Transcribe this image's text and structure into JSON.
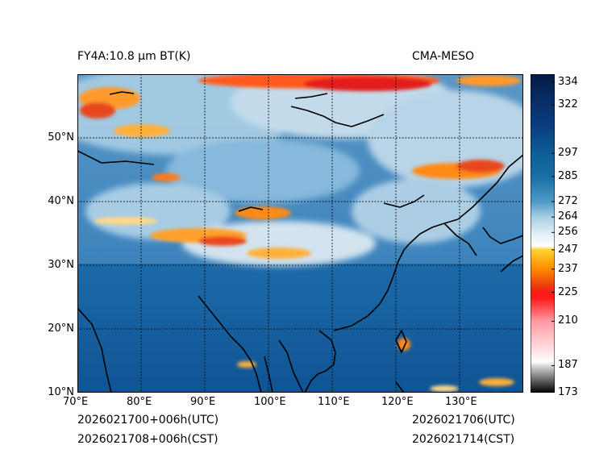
{
  "header": {
    "title_left": "FY4A:10.8 μm BT(K)",
    "title_right": "CMA-MESO"
  },
  "footer": {
    "init_utc": "2026021700+006h(UTC)",
    "init_cst": "2026021708+006h(CST)",
    "valid_utc": "2026021706(UTC)",
    "valid_cst": "2026021714(CST)"
  },
  "map": {
    "lon_ticks": [
      "70°E",
      "80°E",
      "90°E",
      "100°E",
      "110°E",
      "120°E",
      "130°E"
    ],
    "lon_values": [
      70,
      80,
      90,
      100,
      110,
      120,
      130
    ],
    "lat_ticks": [
      "10°N",
      "20°N",
      "30°N",
      "40°N",
      "50°N"
    ],
    "lat_values": [
      10,
      20,
      30,
      40,
      50
    ],
    "lon_range": [
      70,
      140
    ],
    "lat_range": [
      10,
      60
    ]
  },
  "colorbar": {
    "ticks": [
      "334",
      "322",
      "297",
      "285",
      "272",
      "264",
      "256",
      "247",
      "237",
      "225",
      "210",
      "187",
      "173"
    ],
    "values": [
      334,
      322,
      297,
      285,
      272,
      264,
      256,
      247,
      237,
      225,
      210,
      187,
      173
    ],
    "range": [
      173,
      338
    ],
    "stops": [
      {
        "v": 173,
        "c": "#000000"
      },
      {
        "v": 187,
        "c": "#d9d9d9"
      },
      {
        "v": 189,
        "c": "#ffffff"
      },
      {
        "v": 210,
        "c": "#ff9aa3"
      },
      {
        "v": 222,
        "c": "#ff1a1a"
      },
      {
        "v": 225,
        "c": "#ff1a1a"
      },
      {
        "v": 228,
        "c": "#e83a0d"
      },
      {
        "v": 237,
        "c": "#ff8a00"
      },
      {
        "v": 247,
        "c": "#ffd230"
      },
      {
        "v": 249,
        "c": "#ffffff"
      },
      {
        "v": 256,
        "c": "#ddecf4"
      },
      {
        "v": 264,
        "c": "#a7cee3"
      },
      {
        "v": 272,
        "c": "#4e98c6"
      },
      {
        "v": 285,
        "c": "#176fa6"
      },
      {
        "v": 297,
        "c": "#0d5f96"
      },
      {
        "v": 310,
        "c": "#0a3f80"
      },
      {
        "v": 322,
        "c": "#08306b"
      },
      {
        "v": 338,
        "c": "#041a45"
      }
    ]
  },
  "colors": {
    "ocean": "#1d6ea8",
    "land_cold": "#5f9cc9",
    "cloud": "#dfe9f1",
    "warm_high": "#0b4f8c"
  }
}
